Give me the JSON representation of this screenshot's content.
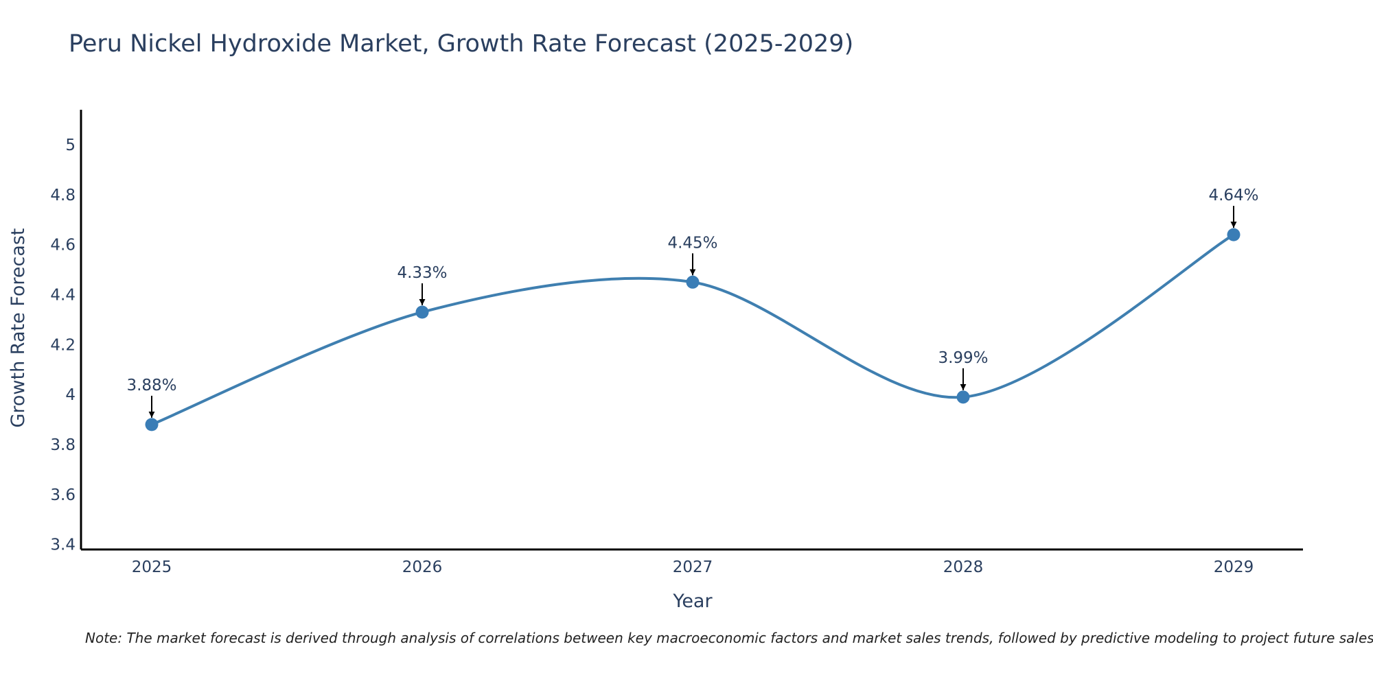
{
  "chart_data": {
    "type": "line",
    "title": "Peru Nickel Hydroxide Market, Growth Rate Forecast (2025-2029)",
    "xlabel": "Year",
    "ylabel": "Growth Rate Forecast",
    "categories": [
      "2025",
      "2026",
      "2027",
      "2028",
      "2029"
    ],
    "series": [
      {
        "name": "Growth Rate Forecast",
        "values": [
          3.88,
          4.33,
          4.45,
          3.99,
          4.64
        ]
      }
    ],
    "data_labels": [
      "3.88%",
      "4.33%",
      "4.45%",
      "3.99%",
      "4.64%"
    ],
    "y_ticks": [
      3.4,
      3.6,
      3.8,
      4,
      4.2,
      4.4,
      4.6,
      4.8,
      5
    ],
    "y_tick_labels": [
      "3.4",
      "3.6",
      "3.8",
      "4",
      "4.2",
      "4.4",
      "4.6",
      "4.8",
      "5"
    ],
    "ylim": [
      3.38,
      5.14
    ],
    "grid": false,
    "line_shape": "spline",
    "colors": {
      "line": "#3f7fb0",
      "marker": "#3a7db6",
      "arrow": "#000000",
      "axis": "#000000"
    }
  },
  "note": "Note: The market forecast is derived through analysis of correlations between key macroeconomic factors and market sales trends, followed by predictive modeling to project future sales"
}
